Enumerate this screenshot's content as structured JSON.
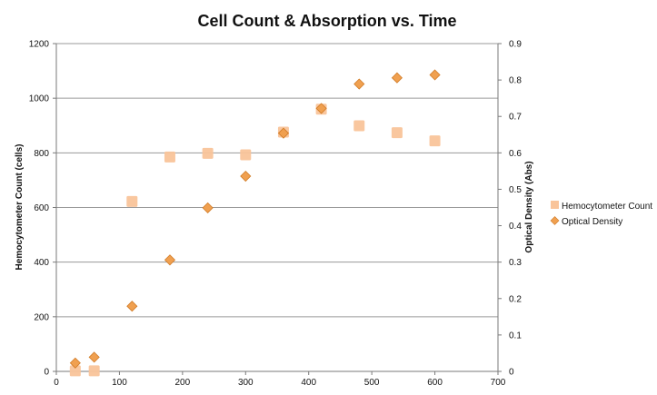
{
  "chart_data": {
    "type": "scatter",
    "title": "Cell Count & Absorption vs. Time",
    "xlabel": "",
    "ylabel": "Hemocytometer Count (cells)",
    "y2label": "Optical Density (Abs)",
    "xlim": [
      0,
      700
    ],
    "ylim": [
      0,
      1200
    ],
    "y2lim": [
      0,
      0.9
    ],
    "xticks": [
      "0",
      "100",
      "200",
      "300",
      "400",
      "500",
      "600",
      "700"
    ],
    "yticks": [
      "0",
      "200",
      "400",
      "600",
      "800",
      "1000",
      "1200"
    ],
    "y2ticks": [
      "0",
      "0.1",
      "0.2",
      "0.3",
      "0.4",
      "0.5",
      "0.6",
      "0.7",
      "0.8",
      "0.9"
    ],
    "grid": true,
    "legend_position": "right",
    "series": [
      {
        "name": "Hemocytometer Count",
        "axis": "left",
        "marker": "square",
        "color": "#f9c49a",
        "x": [
          30,
          60,
          120,
          180,
          240,
          300,
          360,
          420,
          480,
          540,
          600
        ],
        "y": [
          2,
          2,
          622,
          785,
          798,
          793,
          876,
          960,
          899,
          874,
          844
        ]
      },
      {
        "name": "Optical Density",
        "axis": "right",
        "marker": "diamond",
        "color": "#f0a050",
        "x": [
          30,
          60,
          120,
          180,
          240,
          300,
          360,
          420,
          480,
          540,
          600
        ],
        "y": [
          0.023,
          0.039,
          0.179,
          0.306,
          0.449,
          0.536,
          0.654,
          0.722,
          0.789,
          0.806,
          0.814
        ]
      }
    ]
  }
}
